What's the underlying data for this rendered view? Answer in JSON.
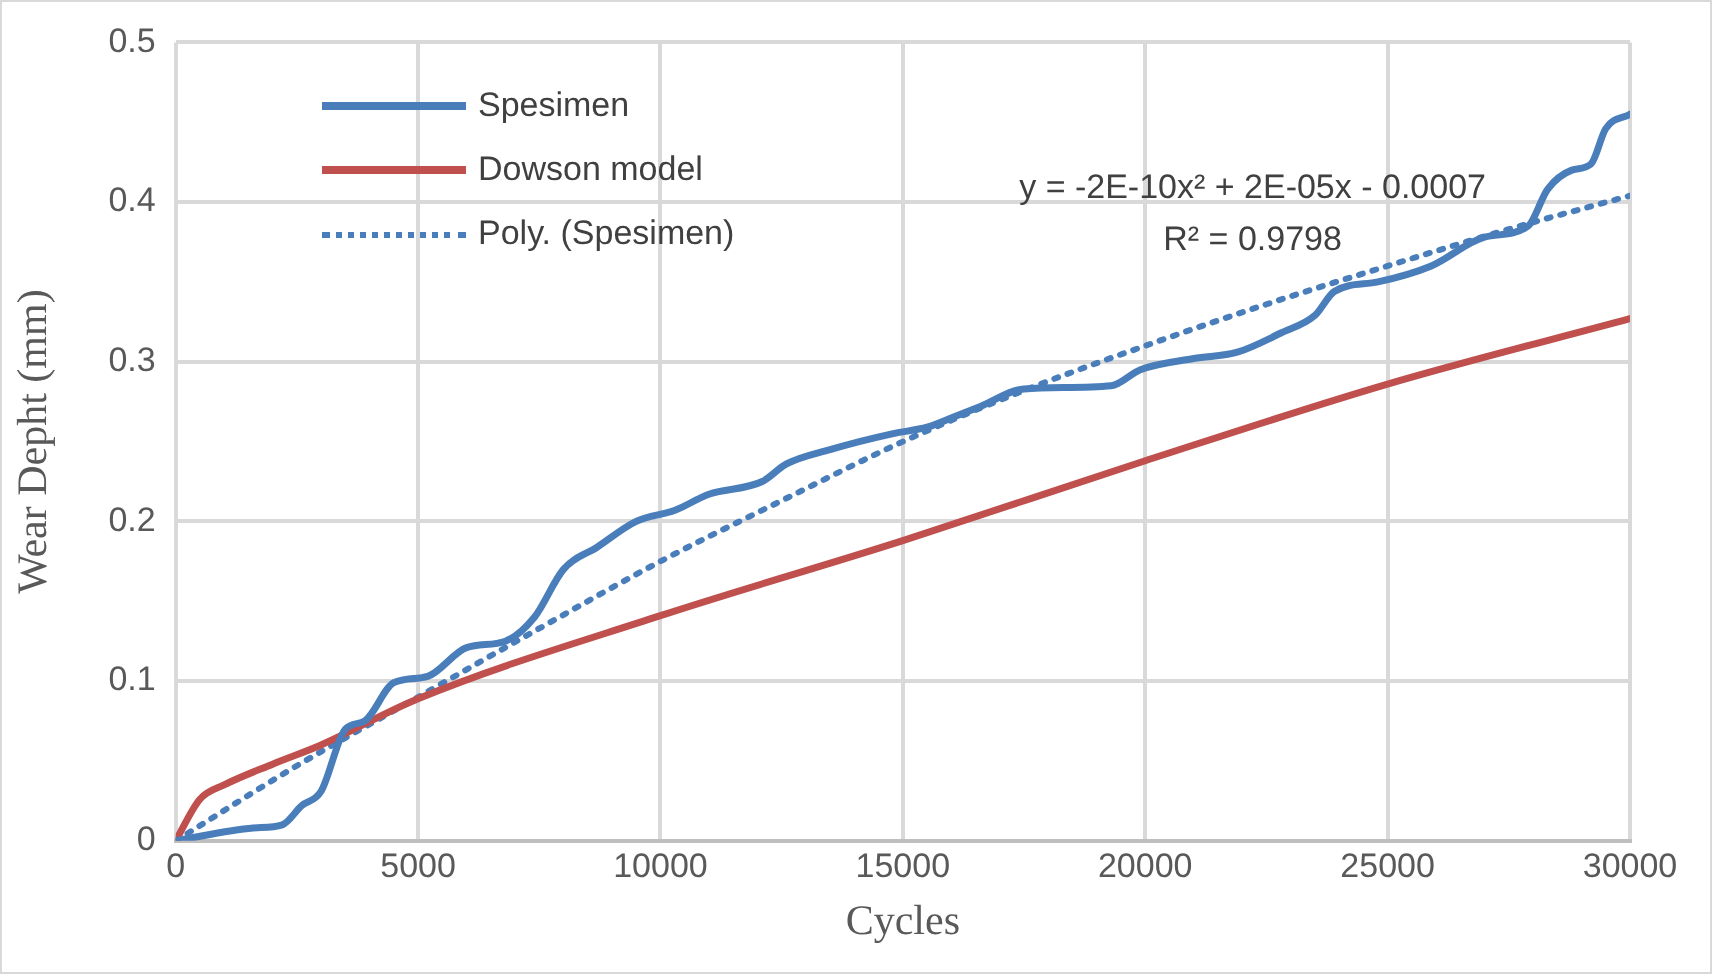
{
  "chart_data": {
    "type": "line",
    "xlabel": "Cycles",
    "ylabel": "Wear Depht (mm)",
    "xlim": [
      0,
      30000
    ],
    "xticks": [
      0,
      5000,
      10000,
      15000,
      20000,
      25000,
      30000
    ],
    "ylim": [
      0,
      0.5
    ],
    "yticks": [
      0,
      0.1,
      0.2,
      0.3,
      0.4,
      0.5
    ],
    "grid": true,
    "legend": "top left",
    "marker": "none",
    "annotations": [
      "y = -2E-10x² + 2E-05x - 0.0007",
      "R² = 0.9798"
    ],
    "series": [
      {
        "name": "Spesimen",
        "color": "#4a7ebb",
        "line_style": "solid",
        "x": [
          0,
          1600,
          2200,
          2600,
          3000,
          3500,
          3900,
          4500,
          5200,
          6000,
          6800,
          7400,
          8000,
          8700,
          9500,
          10300,
          11000,
          12100,
          12600,
          13500,
          14800,
          15500,
          16100,
          16600,
          17500,
          19300,
          19900,
          21000,
          21900,
          22800,
          23500,
          23900,
          24800,
          25900,
          27000,
          27900,
          28300,
          28800,
          29200,
          29500,
          30000
        ],
        "values": [
          0,
          0.008,
          0.01,
          0.022,
          0.031,
          0.07,
          0.075,
          0.099,
          0.103,
          0.121,
          0.125,
          0.14,
          0.17,
          0.184,
          0.2,
          0.207,
          0.217,
          0.225,
          0.236,
          0.245,
          0.255,
          0.259,
          0.266,
          0.272,
          0.283,
          0.285,
          0.295,
          0.302,
          0.306,
          0.318,
          0.329,
          0.344,
          0.35,
          0.36,
          0.378,
          0.385,
          0.408,
          0.42,
          0.424,
          0.446,
          0.455
        ]
      },
      {
        "name": "Dowson model",
        "color": "#c0504d",
        "line_style": "solid",
        "x": [
          0,
          500,
          1000,
          2000,
          3000,
          5000,
          10000,
          15000,
          20000,
          25000,
          30000
        ],
        "values": [
          0,
          0.026,
          0.035,
          0.048,
          0.06,
          0.089,
          0.141,
          0.188,
          0.238,
          0.286,
          0.327
        ]
      },
      {
        "name": "Poly. (Spesimen)",
        "color": "#4a7ebb",
        "line_style": "dotted",
        "x": [
          0,
          2500,
          5000,
          7500,
          10000,
          12500,
          15000,
          17500,
          20000,
          22500,
          25000,
          27500,
          30000
        ],
        "values": [
          0,
          0.047,
          0.09,
          0.133,
          0.175,
          0.213,
          0.25,
          0.282,
          0.31,
          0.336,
          0.36,
          0.383,
          0.404
        ]
      }
    ]
  }
}
